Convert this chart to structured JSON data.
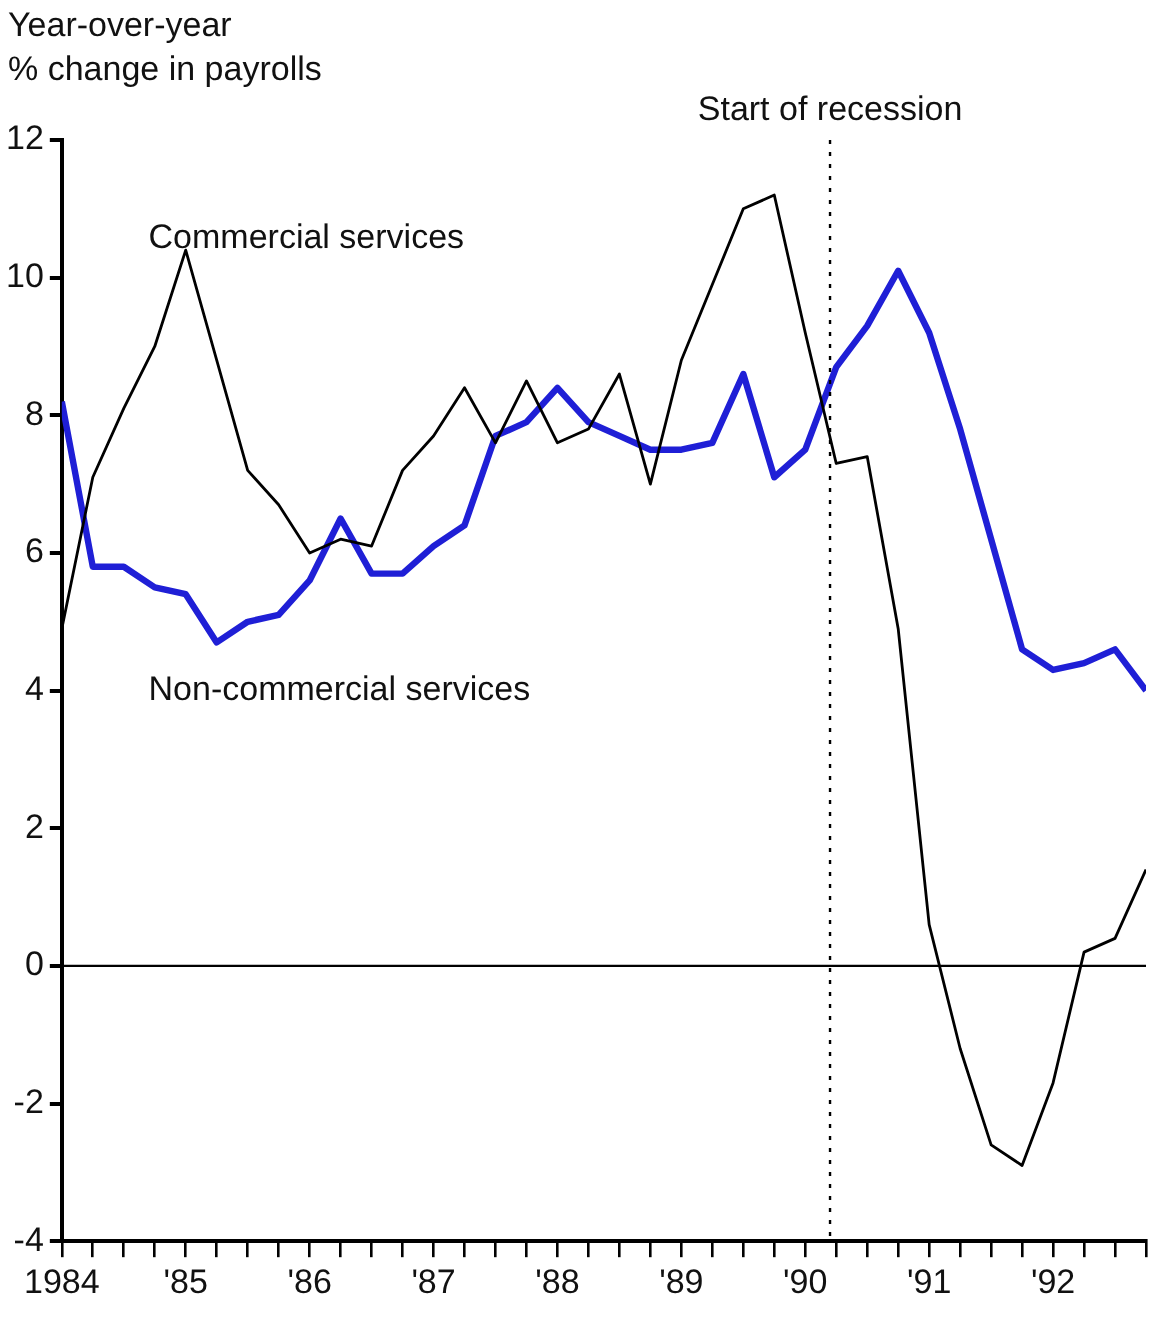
{
  "chart_data": {
    "type": "line",
    "ylabel": "Year-over-year\n% change in payrolls",
    "xlim": [
      1984,
      1992.75
    ],
    "ylim": [
      -4,
      12
    ],
    "yticks": [
      -4,
      -2,
      0,
      2,
      4,
      6,
      8,
      10,
      12
    ],
    "xticks": [
      {
        "value": 1984,
        "label": "1984"
      },
      {
        "value": 1984.25,
        "label": null
      },
      {
        "value": 1984.5,
        "label": null
      },
      {
        "value": 1984.75,
        "label": null
      },
      {
        "value": 1985,
        "label": "'85"
      },
      {
        "value": 1985.25,
        "label": null
      },
      {
        "value": 1985.5,
        "label": null
      },
      {
        "value": 1985.75,
        "label": null
      },
      {
        "value": 1986,
        "label": "'86"
      },
      {
        "value": 1986.25,
        "label": null
      },
      {
        "value": 1986.5,
        "label": null
      },
      {
        "value": 1986.75,
        "label": null
      },
      {
        "value": 1987,
        "label": "'87"
      },
      {
        "value": 1987.25,
        "label": null
      },
      {
        "value": 1987.5,
        "label": null
      },
      {
        "value": 1987.75,
        "label": null
      },
      {
        "value": 1988,
        "label": "'88"
      },
      {
        "value": 1988.25,
        "label": null
      },
      {
        "value": 1988.5,
        "label": null
      },
      {
        "value": 1988.75,
        "label": null
      },
      {
        "value": 1989,
        "label": "'89"
      },
      {
        "value": 1989.25,
        "label": null
      },
      {
        "value": 1989.5,
        "label": null
      },
      {
        "value": 1989.75,
        "label": null
      },
      {
        "value": 1990,
        "label": "'90"
      },
      {
        "value": 1990.25,
        "label": null
      },
      {
        "value": 1990.5,
        "label": null
      },
      {
        "value": 1990.75,
        "label": null
      },
      {
        "value": 1991,
        "label": "'91"
      },
      {
        "value": 1991.25,
        "label": null
      },
      {
        "value": 1991.5,
        "label": null
      },
      {
        "value": 1991.75,
        "label": null
      },
      {
        "value": 1992,
        "label": "'92"
      },
      {
        "value": 1992.25,
        "label": null
      },
      {
        "value": 1992.5,
        "label": null
      },
      {
        "value": 1992.75,
        "label": null
      }
    ],
    "x": [
      1984,
      1984.25,
      1984.5,
      1984.75,
      1985,
      1985.25,
      1985.5,
      1985.75,
      1986,
      1986.25,
      1986.5,
      1986.75,
      1987,
      1987.25,
      1987.5,
      1987.75,
      1988,
      1988.25,
      1988.5,
      1988.75,
      1989,
      1989.25,
      1989.5,
      1989.75,
      1990,
      1990.25,
      1990.5,
      1990.75,
      1991,
      1991.25,
      1991.5,
      1991.75,
      1992,
      1992.25,
      1992.5,
      1992.75
    ],
    "series": [
      {
        "name": "Commercial services",
        "color": "#000000",
        "values": [
          4.9,
          7.1,
          8.1,
          9.0,
          10.4,
          8.8,
          7.2,
          6.7,
          6.0,
          6.2,
          6.1,
          7.2,
          7.7,
          8.4,
          7.6,
          8.5,
          7.6,
          7.8,
          8.6,
          7.0,
          8.8,
          9.9,
          11.0,
          11.2,
          9.2,
          7.3,
          7.4,
          4.9,
          0.6,
          -1.2,
          -2.6,
          -2.9,
          -1.7,
          0.2,
          0.4,
          1.4
        ]
      },
      {
        "name": "Non-commercial services",
        "color": "#1f1fd6",
        "values": [
          8.2,
          5.8,
          5.8,
          5.5,
          5.4,
          4.7,
          5.0,
          5.1,
          5.6,
          6.5,
          5.7,
          5.7,
          6.1,
          6.4,
          7.7,
          7.9,
          8.4,
          7.9,
          7.7,
          7.5,
          7.5,
          7.6,
          8.6,
          7.1,
          7.5,
          8.7,
          9.3,
          10.1,
          9.2,
          7.8,
          6.2,
          4.6,
          4.3,
          4.4,
          4.6,
          4.0
        ]
      }
    ],
    "ref_lines": [
      {
        "axis": "y",
        "value": 0,
        "label": null,
        "color": "#000000",
        "line_style": "solid"
      },
      {
        "axis": "x",
        "value": 1990.2,
        "label": "Start of recession",
        "color": "#000000",
        "line_style": "dotted"
      }
    ],
    "grid": false,
    "legend": false,
    "marker": "none"
  }
}
